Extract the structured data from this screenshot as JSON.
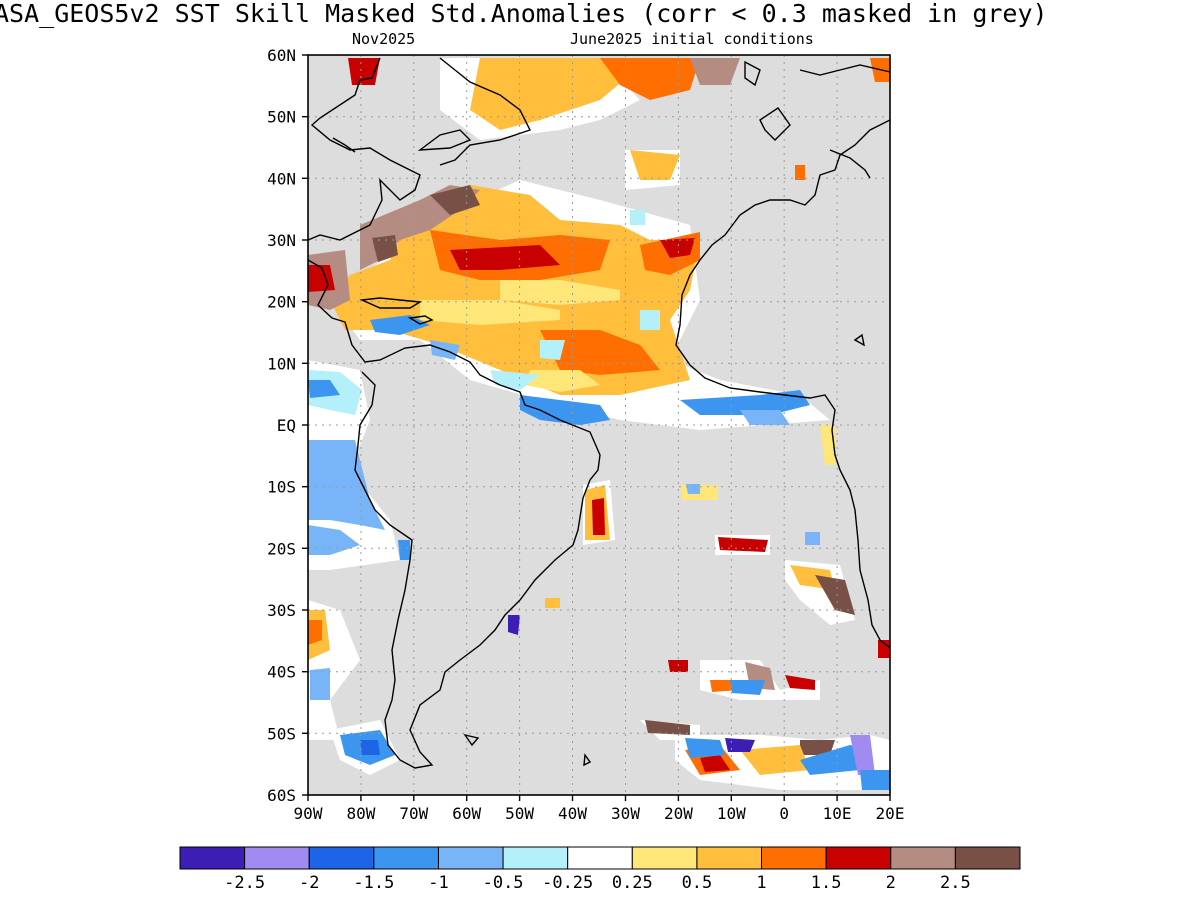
{
  "header": {
    "title": "ASA_GEOS5v2   SST Skill Masked Std.Anomalies (corr < 0.3 masked in grey)",
    "forecast_month": "Nov2025",
    "initial_conditions": "June2025 initial conditions"
  },
  "map": {
    "lat_labels": [
      "60N",
      "50N",
      "40N",
      "30N",
      "20N",
      "10N",
      "EQ",
      "10S",
      "20S",
      "30S",
      "40S",
      "50S",
      "60S"
    ],
    "lon_labels": [
      "90W",
      "80W",
      "70W",
      "60W",
      "50W",
      "40W",
      "30W",
      "20W",
      "10W",
      "0",
      "10E",
      "20E"
    ],
    "lat_range": [
      -60,
      60
    ],
    "lon_range": [
      -90,
      20
    ],
    "mask_color": "#dddddd",
    "ocean_color": "#ffffff",
    "grid": "dotted"
  },
  "legend": {
    "colors": [
      "#3c1eb4",
      "#a08cf0",
      "#1e64e6",
      "#3c96f0",
      "#78b4f8",
      "#b4f0fa",
      "#ffffff",
      "#ffe678",
      "#ffbe3c",
      "#ff6e00",
      "#c80000",
      "#b48c82",
      "#785046"
    ],
    "tick_labels": [
      "-2.5",
      "-2",
      "-1.5",
      "-1",
      "-0.5",
      "-0.25",
      "0.25",
      "0.5",
      "1",
      "1.5",
      "2",
      "2.5"
    ]
  }
}
